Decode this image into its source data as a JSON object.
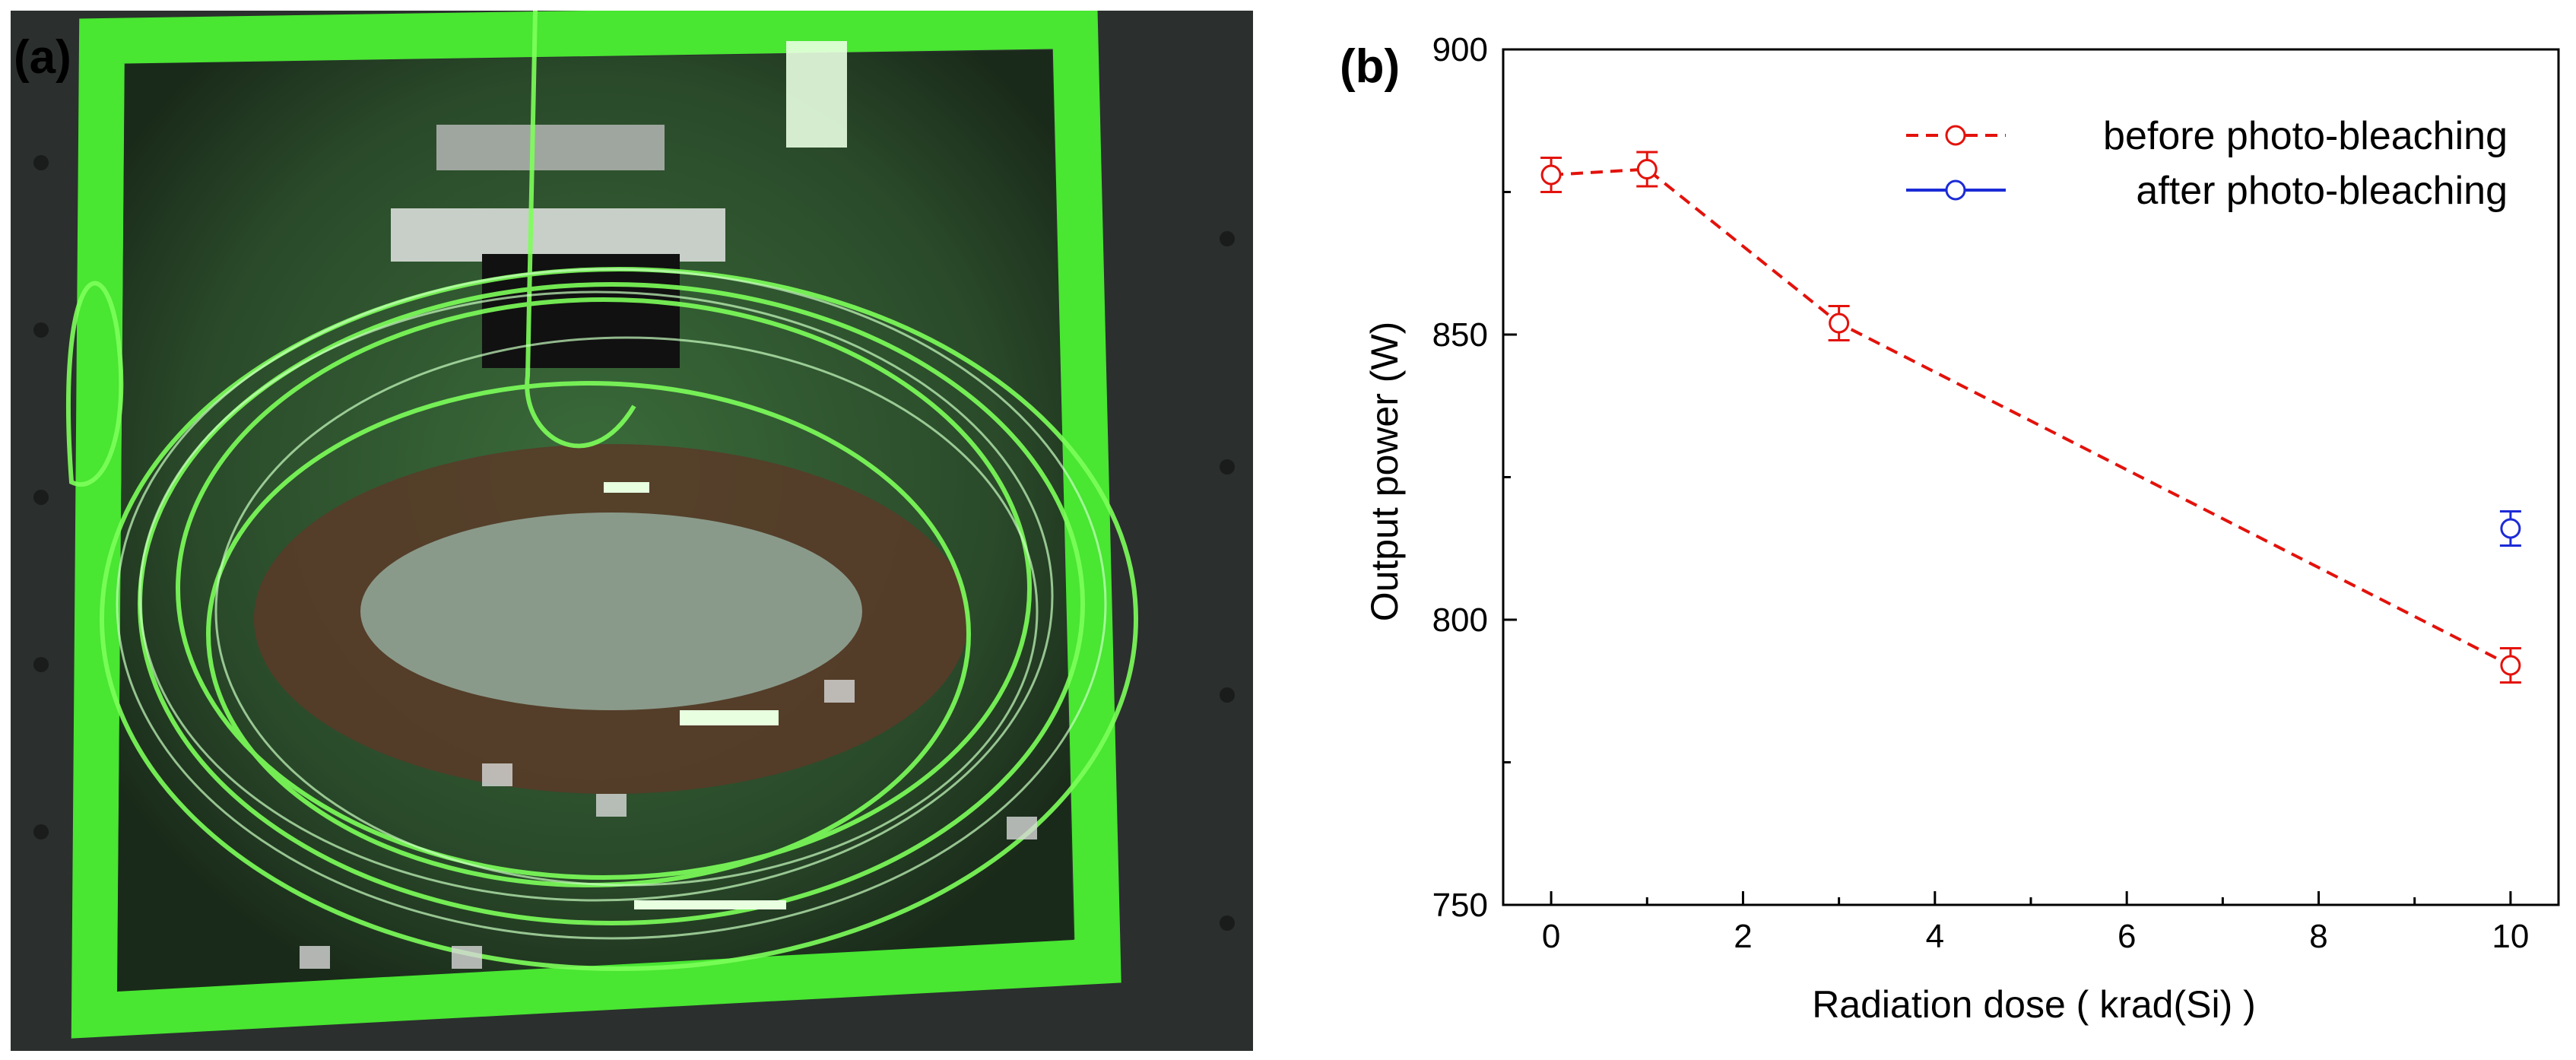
{
  "panel_a": {
    "label": "(a)"
  },
  "panel_b": {
    "label": "(b)"
  },
  "chart_data": {
    "type": "line",
    "title": "",
    "xlabel": "Radiation dose ( krad(Si) )",
    "ylabel": "Output power (W)",
    "xlim": [
      -0.5,
      10.5
    ],
    "ylim": [
      750,
      900
    ],
    "x_ticks": [
      0,
      2,
      4,
      6,
      8,
      10
    ],
    "y_ticks": [
      750,
      800,
      850,
      900
    ],
    "grid": false,
    "legend_position": "top-right",
    "series": [
      {
        "name": "before photo-bleaching",
        "color": "#e3120b",
        "line_style": "dashed",
        "marker": "open-circle",
        "points": [
          {
            "x": 0,
            "y": 878,
            "err": 3
          },
          {
            "x": 1,
            "y": 879,
            "err": 3
          },
          {
            "x": 3,
            "y": 852,
            "err": 3
          },
          {
            "x": 10,
            "y": 792,
            "err": 3
          }
        ]
      },
      {
        "name": "after photo-bleaching",
        "color": "#1c2bd6",
        "line_style": "solid",
        "marker": "open-circle",
        "points": [
          {
            "x": 10,
            "y": 816,
            "err": 3
          }
        ]
      }
    ]
  }
}
